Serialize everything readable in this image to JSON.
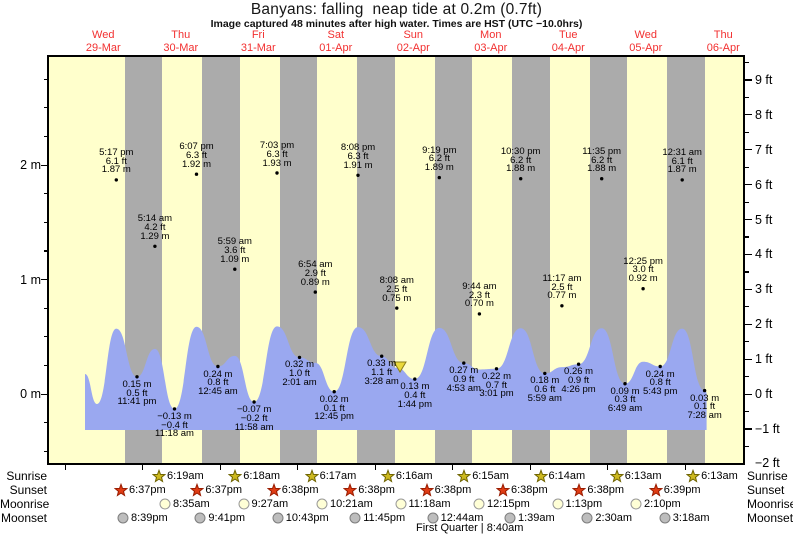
{
  "title": "Banyans: falling  neap tide at 0.2m (0.7ft)",
  "subtitle": "Image captured 48 minutes after high water. Times are HST (UTC −10.0hrs)",
  "days": [
    {
      "weekday": "Wed",
      "date": "29-Mar"
    },
    {
      "weekday": "Thu",
      "date": "30-Mar"
    },
    {
      "weekday": "Fri",
      "date": "31-Mar"
    },
    {
      "weekday": "Sat",
      "date": "01-Apr"
    },
    {
      "weekday": "Sun",
      "date": "02-Apr"
    },
    {
      "weekday": "Mon",
      "date": "03-Apr"
    },
    {
      "weekday": "Tue",
      "date": "04-Apr"
    },
    {
      "weekday": "Wed",
      "date": "05-Apr"
    },
    {
      "weekday": "Thu",
      "date": "06-Apr"
    }
  ],
  "colors": {
    "day_background": "#ffffcc",
    "night_band": "#ababab",
    "water": "#9aa8f0",
    "date_red": "#f23030",
    "sunrise_star_fill": "#cdb91f",
    "sunrise_star_stroke": "#6f6400",
    "sunset_star_fill": "#e03c14",
    "sunset_star_stroke": "#991c00",
    "moonrise_fill": "#ffffd6",
    "moonrise_stroke": "#989898",
    "moonset_fill": "#bdbdbd",
    "moonset_stroke": "#7d7d7d",
    "now_marker_fill": "#ead93b",
    "now_marker_stroke": "#8a7d1a"
  },
  "chart_data": {
    "type": "area",
    "title": "Banyans: falling neap tide at 0.2m (0.7ft)",
    "current_tide": {
      "state": "falling",
      "height_m": 0.2,
      "height_ft": 0.7
    },
    "x_categories": [
      "Wed 29-Mar",
      "Thu 30-Mar",
      "Fri 31-Mar",
      "Sat 01-Apr",
      "Sun 02-Apr",
      "Mon 03-Apr",
      "Tue 04-Apr",
      "Wed 05-Apr",
      "Thu 06-Apr"
    ],
    "y_axis_left": {
      "unit": "m",
      "values": [
        2,
        1,
        0
      ],
      "labels": [
        "2 m",
        "1 m",
        "0 m"
      ]
    },
    "y_axis_right": {
      "unit": "ft",
      "values": [
        9,
        8,
        7,
        6,
        5,
        4,
        3,
        2,
        1,
        0,
        -1,
        -2
      ],
      "labels": [
        "9 ft",
        "8 ft",
        "7 ft",
        "6 ft",
        "5 ft",
        "4 ft",
        "3 ft",
        "2 ft",
        "1 ft",
        "0 ft",
        "−1 ft",
        "−2 ft"
      ]
    },
    "ylim_m": [
      -0.61,
      2.94
    ],
    "grid": false,
    "tide_events": [
      {
        "day": 0,
        "time": "5:17 pm",
        "height_m": 1.87,
        "type": "high",
        "label": [
          "5:17 pm",
          "6.1 ft",
          "1.87 m"
        ]
      },
      {
        "day": 0,
        "time": "11:41 pm",
        "height_m": 0.15,
        "type": "low",
        "label": [
          "0.15 m",
          "0.5 ft",
          "11:41 pm"
        ]
      },
      {
        "day": 1,
        "time": "5:14 am",
        "height_m": 1.29,
        "type": "high",
        "label": [
          "5:14 am",
          "4.2 ft",
          "1.29 m"
        ]
      },
      {
        "day": 1,
        "time": "11:18 am",
        "height_m": -0.13,
        "type": "low",
        "label": [
          "−0.13 m",
          "−0.4 ft",
          "11:18 am"
        ]
      },
      {
        "day": 1,
        "time": "6:07 pm",
        "height_m": 1.92,
        "type": "high",
        "label": [
          "6:07 pm",
          "6.3 ft",
          "1.92 m"
        ]
      },
      {
        "day": 2,
        "time": "12:45 am",
        "height_m": 0.24,
        "type": "low",
        "label": [
          "0.24 m",
          "0.8 ft",
          "12:45 am"
        ]
      },
      {
        "day": 2,
        "time": "5:59 am",
        "height_m": 1.09,
        "type": "high",
        "label": [
          "5:59 am",
          "3.6 ft",
          "1.09 m"
        ]
      },
      {
        "day": 2,
        "time": "11:58 am",
        "height_m": -0.07,
        "type": "low",
        "label": [
          "−0.07 m",
          "−0.2 ft",
          "11:58 am"
        ]
      },
      {
        "day": 2,
        "time": "7:03 pm",
        "height_m": 1.93,
        "type": "high",
        "label": [
          "7:03 pm",
          "6.3 ft",
          "1.93 m"
        ]
      },
      {
        "day": 3,
        "time": "2:01 am",
        "height_m": 0.32,
        "type": "low",
        "label": [
          "0.32 m",
          "1.0 ft",
          "2:01 am"
        ]
      },
      {
        "day": 3,
        "time": "6:54 am",
        "height_m": 0.89,
        "type": "high",
        "label": [
          "6:54 am",
          "2.9 ft",
          "0.89 m"
        ]
      },
      {
        "day": 3,
        "time": "12:45 pm",
        "height_m": 0.02,
        "type": "low",
        "label": [
          "0.02 m",
          "0.1 ft",
          "12:45 pm"
        ]
      },
      {
        "day": 3,
        "time": "8:08 pm",
        "height_m": 1.91,
        "type": "high",
        "label": [
          "8:08 pm",
          "6.3 ft",
          "1.91 m"
        ]
      },
      {
        "day": 4,
        "time": "3:28 am",
        "height_m": 0.33,
        "type": "low",
        "label": [
          "0.33 m",
          "1.1 ft",
          "3:28 am"
        ]
      },
      {
        "day": 4,
        "time": "8:08 am",
        "height_m": 0.75,
        "type": "high",
        "label": [
          "8:08 am",
          "2.5 ft",
          "0.75 m"
        ]
      },
      {
        "day": 4,
        "time": "1:44 pm",
        "height_m": 0.13,
        "type": "low",
        "label": [
          "0.13 m",
          "0.4 ft",
          "1:44 pm"
        ]
      },
      {
        "day": 4,
        "time": "9:19 pm",
        "height_m": 1.89,
        "type": "high",
        "label": [
          "9:19 pm",
          "6.2 ft",
          "1.89 m"
        ]
      },
      {
        "day": 5,
        "time": "4:53 am",
        "height_m": 0.27,
        "type": "low",
        "label": [
          "0.27 m",
          "0.9 ft",
          "4:53 am"
        ]
      },
      {
        "day": 5,
        "time": "9:44 am",
        "height_m": 0.7,
        "type": "high",
        "label": [
          "9:44 am",
          "2.3 ft",
          "0.70 m"
        ]
      },
      {
        "day": 5,
        "time": "3:01 pm",
        "height_m": 0.22,
        "type": "low",
        "label": [
          "0.22 m",
          "0.7 ft",
          "3:01 pm"
        ]
      },
      {
        "day": 5,
        "time": "10:30 pm",
        "height_m": 1.88,
        "type": "high",
        "label": [
          "10:30 pm",
          "6.2 ft",
          "1.88 m"
        ]
      },
      {
        "day": 6,
        "time": "5:59 am",
        "height_m": 0.18,
        "type": "low",
        "label": [
          "0.18 m",
          "0.6 ft",
          "5:59 am"
        ]
      },
      {
        "day": 6,
        "time": "11:17 am",
        "height_m": 0.77,
        "type": "high",
        "label": [
          "11:17 am",
          "2.5 ft",
          "0.77 m"
        ]
      },
      {
        "day": 6,
        "time": "4:26 pm",
        "height_m": 0.26,
        "type": "low",
        "label": [
          "0.26 m",
          "0.9 ft",
          "4:26 pm"
        ]
      },
      {
        "day": 6,
        "time": "11:35 pm",
        "height_m": 1.88,
        "type": "high",
        "label": [
          "11:35 pm",
          "6.2 ft",
          "1.88 m"
        ]
      },
      {
        "day": 7,
        "time": "6:49 am",
        "height_m": 0.09,
        "type": "low",
        "label": [
          "0.09 m",
          "0.3 ft",
          "6:49 am"
        ]
      },
      {
        "day": 7,
        "time": "12:25 pm",
        "height_m": 0.92,
        "type": "high",
        "label": [
          "12:25 pm",
          "3.0 ft",
          "0.92 m"
        ]
      },
      {
        "day": 7,
        "time": "5:43 pm",
        "height_m": 0.24,
        "type": "low",
        "label": [
          "0.24 m",
          "0.8 ft",
          "5:43 pm"
        ]
      },
      {
        "day": 8,
        "time": "12:31 am",
        "height_m": 1.87,
        "type": "high",
        "label": [
          "12:31 am",
          "6.1 ft",
          "1.87 m"
        ]
      },
      {
        "day": 8,
        "time": "7:28 am",
        "height_m": 0.03,
        "type": "low",
        "label": [
          "0.03 m",
          "0.1 ft",
          "7:28 am"
        ]
      }
    ]
  },
  "astro": {
    "rows": [
      {
        "label": "Sunrise",
        "marker": "sunrise-star",
        "times": [
          "6:19am",
          "6:18am",
          "6:17am",
          "6:16am",
          "6:15am",
          "6:14am",
          "6:13am",
          "6:13am"
        ]
      },
      {
        "label": "Sunset",
        "marker": "sunset-star",
        "times": [
          "6:37pm",
          "6:37pm",
          "6:38pm",
          "6:38pm",
          "6:38pm",
          "6:38pm",
          "6:38pm",
          "6:39pm"
        ]
      },
      {
        "label": "Moonrise",
        "marker": "moonrise-circle",
        "times": [
          "8:35am",
          "9:27am",
          "10:21am",
          "11:18am",
          "12:15pm",
          "1:13pm",
          "2:10pm"
        ]
      },
      {
        "label": "Moonset",
        "marker": "moonset-circle",
        "times": [
          "8:39pm",
          "9:41pm",
          "10:43pm",
          "11:45pm",
          "12:44am",
          "1:39am",
          "2:30am",
          "3:18am"
        ]
      }
    ],
    "moon_phase": "First Quarter | 8:40am"
  }
}
